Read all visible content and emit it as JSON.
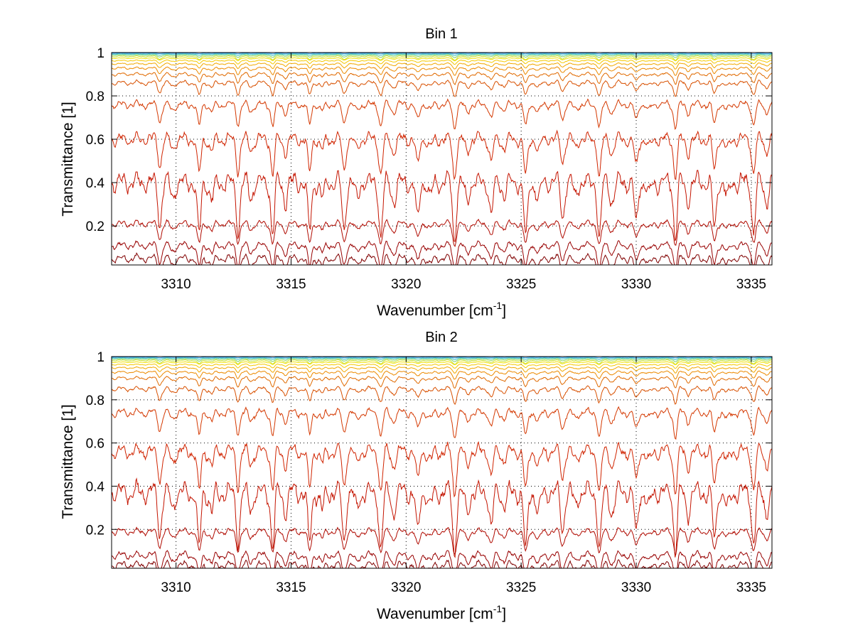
{
  "chart_data": [
    {
      "type": "line",
      "title": "Bin 1",
      "xlabel": "Wavenumber [cm",
      "xlabel_sup": "-1",
      "xlabel_end": "]",
      "ylabel": "Transmittance [1]",
      "xlim": [
        3307.2,
        3335.9
      ],
      "ylim": [
        0.02,
        1.0
      ],
      "x_ticks": [
        3310,
        3315,
        3320,
        3325,
        3330,
        3335
      ],
      "y_ticks": [
        0.2,
        0.4,
        0.6,
        0.8,
        1
      ],
      "grid": "dotted",
      "line_dips": [
        3309.3,
        3311.0,
        3312.7,
        3314.2,
        3315.8,
        3317.3,
        3318.9,
        3320.5,
        3322.1,
        3323.7,
        3325.2,
        3326.8,
        3328.4,
        3330.0,
        3331.7,
        3333.4,
        3335.1
      ],
      "series": [
        {
          "baseline": 1.0,
          "color": "#0a3fb0"
        },
        {
          "baseline": 0.997,
          "color": "#1e8fdc"
        },
        {
          "baseline": 0.993,
          "color": "#30c0c0"
        },
        {
          "baseline": 0.988,
          "color": "#7fd060"
        },
        {
          "baseline": 0.982,
          "color": "#c8e030"
        },
        {
          "baseline": 0.974,
          "color": "#f0e000"
        },
        {
          "baseline": 0.963,
          "color": "#f5c800"
        },
        {
          "baseline": 0.948,
          "color": "#f2a800"
        },
        {
          "baseline": 0.928,
          "color": "#ec8a00"
        },
        {
          "baseline": 0.9,
          "color": "#e06a00"
        },
        {
          "baseline": 0.86,
          "color": "#d85000"
        },
        {
          "baseline": 0.76,
          "color": "#d43800"
        },
        {
          "baseline": 0.6,
          "color": "#d02400"
        },
        {
          "baseline": 0.4,
          "color": "#c41400"
        },
        {
          "baseline": 0.21,
          "color": "#b00a00"
        },
        {
          "baseline": 0.11,
          "color": "#980000"
        },
        {
          "baseline": 0.05,
          "color": "#800000"
        }
      ]
    },
    {
      "type": "line",
      "title": "Bin 2",
      "xlabel": "Wavenumber [cm",
      "xlabel_sup": "-1",
      "xlabel_end": "]",
      "ylabel": "Transmittance [1]",
      "xlim": [
        3307.2,
        3335.9
      ],
      "ylim": [
        0.02,
        1.0
      ],
      "x_ticks": [
        3310,
        3315,
        3320,
        3325,
        3330,
        3335
      ],
      "y_ticks": [
        0.2,
        0.4,
        0.6,
        0.8,
        1
      ],
      "grid": "dotted",
      "line_dips": [
        3309.3,
        3311.0,
        3312.7,
        3314.2,
        3315.8,
        3317.3,
        3318.9,
        3320.5,
        3322.1,
        3323.7,
        3325.2,
        3326.8,
        3328.4,
        3330.0,
        3331.7,
        3333.4,
        3335.1
      ],
      "series": [
        {
          "baseline": 1.0,
          "color": "#0a3fb0"
        },
        {
          "baseline": 0.997,
          "color": "#1e8fdc"
        },
        {
          "baseline": 0.993,
          "color": "#30c0c0"
        },
        {
          "baseline": 0.988,
          "color": "#7fd060"
        },
        {
          "baseline": 0.982,
          "color": "#c8e030"
        },
        {
          "baseline": 0.974,
          "color": "#f0e000"
        },
        {
          "baseline": 0.963,
          "color": "#f5c800"
        },
        {
          "baseline": 0.948,
          "color": "#f2a800"
        },
        {
          "baseline": 0.928,
          "color": "#ec8a00"
        },
        {
          "baseline": 0.9,
          "color": "#e06a00"
        },
        {
          "baseline": 0.85,
          "color": "#d85000"
        },
        {
          "baseline": 0.74,
          "color": "#d43800"
        },
        {
          "baseline": 0.56,
          "color": "#d02400"
        },
        {
          "baseline": 0.37,
          "color": "#c41400"
        },
        {
          "baseline": 0.19,
          "color": "#b00a00"
        },
        {
          "baseline": 0.08,
          "color": "#980000"
        },
        {
          "baseline": 0.035,
          "color": "#800000"
        }
      ]
    }
  ]
}
